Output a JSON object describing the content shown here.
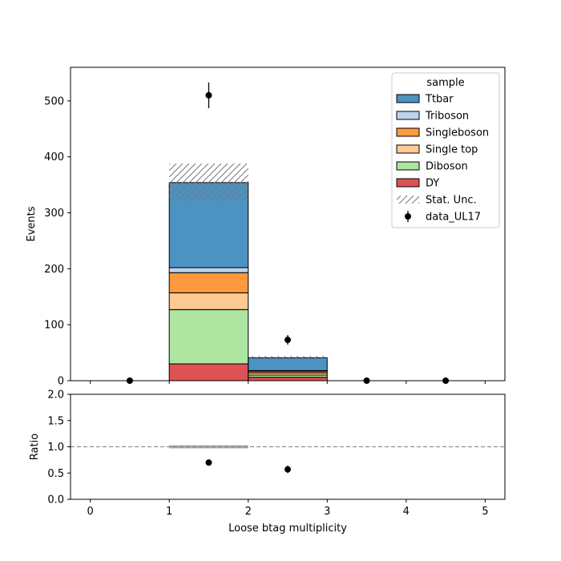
{
  "chart_data": {
    "type": "bar",
    "stacked": true,
    "bin_edges": [
      0,
      1,
      2,
      3,
      4,
      5
    ],
    "xlabel": "Loose btag multiplicity",
    "x_ticks": [
      "0",
      "1",
      "2",
      "3",
      "4",
      "5"
    ],
    "main": {
      "ylabel": "Events",
      "ylim": [
        0,
        560
      ],
      "y_ticks": [
        "0",
        "100",
        "200",
        "300",
        "400",
        "500"
      ],
      "series": [
        {
          "name": "DY",
          "color": "#d62728",
          "values": [
            0,
            30,
            6,
            0,
            0
          ]
        },
        {
          "name": "Diboson",
          "color": "#98df8a",
          "values": [
            0,
            97,
            4,
            0,
            0
          ]
        },
        {
          "name": "Single top",
          "color": "#ffbb78",
          "values": [
            0,
            30,
            4,
            0,
            0
          ]
        },
        {
          "name": "Singleboson",
          "color": "#ff7f0e",
          "values": [
            0,
            36,
            3,
            0,
            0
          ]
        },
        {
          "name": "Triboson",
          "color": "#aec7e8",
          "values": [
            0,
            9,
            1,
            0,
            0
          ]
        },
        {
          "name": "Ttbar",
          "color": "#1f77b4",
          "values": [
            0,
            152,
            23,
            0,
            0
          ]
        }
      ],
      "stat_unc": [
        {
          "bin": 1,
          "low": 322,
          "high": 388
        },
        {
          "bin": 2,
          "low": 38,
          "high": 44
        }
      ],
      "data": {
        "name": "data_UL17",
        "x": [
          0.5,
          1.5,
          2.5,
          3.5,
          4.5
        ],
        "y": [
          0,
          510,
          73,
          0,
          0
        ],
        "yerr": [
          0,
          23,
          8.5,
          0,
          0
        ]
      },
      "legend": {
        "title": "sample",
        "placement": "top-right",
        "stat_unc_label": "Stat. Unc."
      }
    },
    "ratio": {
      "ylabel": "Ratio",
      "ylim": [
        0,
        2
      ],
      "y_ticks": [
        "0.0",
        "0.5",
        "1.0",
        "1.5",
        "2.0"
      ],
      "reference_line": 1.0,
      "unc_band": [
        {
          "bin": 1,
          "low": 0.97,
          "high": 1.03
        }
      ],
      "points": {
        "x": [
          1.5,
          2.5
        ],
        "y": [
          0.7,
          0.57
        ],
        "yerr": [
          0.04,
          0.07
        ]
      }
    }
  }
}
